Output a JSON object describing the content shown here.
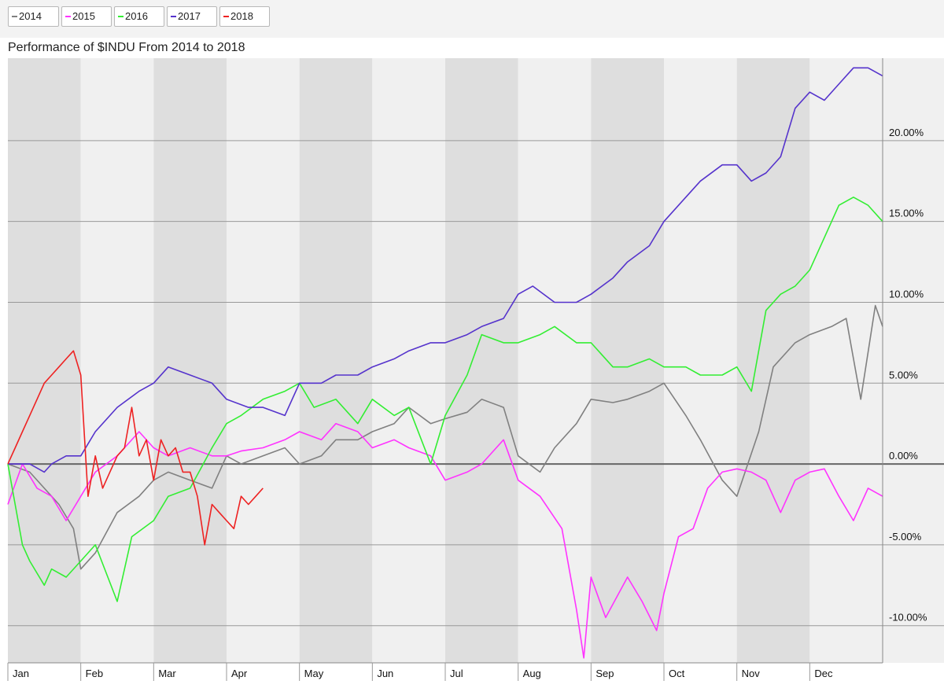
{
  "legend": [
    {
      "label": "2014",
      "color": "#808080"
    },
    {
      "label": "2015",
      "color": "#ff33ff"
    },
    {
      "label": "2016",
      "color": "#33ee33"
    },
    {
      "label": "2017",
      "color": "#5533cc"
    },
    {
      "label": "2018",
      "color": "#ee2222"
    }
  ],
  "chart_data": {
    "type": "line",
    "title": "Performance of $INDU From 2014 to 2018",
    "xlabel": "",
    "ylabel": "",
    "x_axis": "month",
    "months": [
      "Jan",
      "Feb",
      "Mar",
      "Apr",
      "May",
      "Jun",
      "Jul",
      "Aug",
      "Sep",
      "Oct",
      "Nov",
      "Dec"
    ],
    "y_ticks": [
      20,
      15,
      10,
      5,
      0,
      -5,
      -10
    ],
    "y_tick_labels": [
      "20.00%",
      "15.00%",
      "10.00%",
      "5.00%",
      "0.00%",
      "-5.00%",
      "-10.00%"
    ],
    "ylim": [
      -12.3,
      25.1
    ],
    "xlim": [
      0,
      12
    ],
    "grid": true,
    "legend_position": "top-left",
    "series": [
      {
        "name": "2014",
        "color": "#808080",
        "x": [
          0,
          0.3,
          0.5,
          0.7,
          0.9,
          1.0,
          1.2,
          1.5,
          1.8,
          2.0,
          2.2,
          2.5,
          2.8,
          3.0,
          3.2,
          3.5,
          3.8,
          4.0,
          4.3,
          4.5,
          4.8,
          5.0,
          5.3,
          5.5,
          5.8,
          6.0,
          6.3,
          6.5,
          6.8,
          7.0,
          7.3,
          7.5,
          7.8,
          8.0,
          8.3,
          8.5,
          8.8,
          9.0,
          9.3,
          9.5,
          9.8,
          10.0,
          10.3,
          10.5,
          10.8,
          11.0,
          11.3,
          11.5,
          11.7,
          11.9,
          12.0
        ],
        "values": [
          0,
          -0.5,
          -1.5,
          -2.5,
          -4.0,
          -6.5,
          -5.5,
          -3.0,
          -2.0,
          -1.0,
          -0.5,
          -1.0,
          -1.5,
          0.5,
          0.0,
          0.5,
          1.0,
          0.0,
          0.5,
          1.5,
          1.5,
          2.0,
          2.5,
          3.5,
          2.5,
          2.8,
          3.2,
          4.0,
          3.5,
          0.5,
          -0.5,
          1.0,
          2.5,
          4.0,
          3.8,
          4.0,
          4.5,
          5.0,
          3.0,
          1.5,
          -1.0,
          -2.0,
          2.0,
          6.0,
          7.5,
          8.0,
          8.5,
          9.0,
          4.0,
          9.8,
          8.5
        ]
      },
      {
        "name": "2015",
        "color": "#ff33ff",
        "x": [
          0,
          0.2,
          0.4,
          0.6,
          0.8,
          1.0,
          1.2,
          1.5,
          1.8,
          2.0,
          2.2,
          2.5,
          2.8,
          3.0,
          3.2,
          3.5,
          3.8,
          4.0,
          4.3,
          4.5,
          4.8,
          5.0,
          5.3,
          5.5,
          5.8,
          6.0,
          6.3,
          6.5,
          6.8,
          7.0,
          7.3,
          7.6,
          7.8,
          7.9,
          8.0,
          8.2,
          8.5,
          8.7,
          8.9,
          9.0,
          9.2,
          9.4,
          9.6,
          9.8,
          10.0,
          10.2,
          10.4,
          10.6,
          10.8,
          11.0,
          11.2,
          11.4,
          11.6,
          11.8,
          12.0
        ],
        "values": [
          -2.5,
          0.0,
          -1.5,
          -2.0,
          -3.5,
          -2.0,
          -0.5,
          0.5,
          2.0,
          1.0,
          0.5,
          1.0,
          0.5,
          0.5,
          0.8,
          1.0,
          1.5,
          2.0,
          1.5,
          2.5,
          2.0,
          1.0,
          1.5,
          1.0,
          0.5,
          -1.0,
          -0.5,
          0.0,
          1.5,
          -1.0,
          -2.0,
          -4.0,
          -9.0,
          -12.0,
          -7.0,
          -9.5,
          -7.0,
          -8.5,
          -10.3,
          -8.0,
          -4.5,
          -4.0,
          -1.5,
          -0.5,
          -0.3,
          -0.5,
          -1.0,
          -3.0,
          -1.0,
          -0.5,
          -0.3,
          -2.0,
          -3.5,
          -1.5,
          -2.0
        ]
      },
      {
        "name": "2016",
        "color": "#33ee33",
        "x": [
          0,
          0.2,
          0.3,
          0.5,
          0.6,
          0.8,
          1.0,
          1.2,
          1.5,
          1.7,
          2.0,
          2.2,
          2.5,
          2.8,
          3.0,
          3.2,
          3.5,
          3.8,
          4.0,
          4.2,
          4.5,
          4.8,
          5.0,
          5.3,
          5.5,
          5.8,
          6.0,
          6.3,
          6.5,
          6.8,
          7.0,
          7.3,
          7.5,
          7.8,
          8.0,
          8.3,
          8.5,
          8.8,
          9.0,
          9.3,
          9.5,
          9.8,
          10.0,
          10.2,
          10.4,
          10.6,
          10.8,
          11.0,
          11.2,
          11.4,
          11.6,
          11.8,
          12.0
        ],
        "values": [
          0,
          -5.0,
          -6.0,
          -7.5,
          -6.5,
          -7.0,
          -6.0,
          -5.0,
          -8.5,
          -4.5,
          -3.5,
          -2.0,
          -1.5,
          1.0,
          2.5,
          3.0,
          4.0,
          4.5,
          5.0,
          3.5,
          4.0,
          2.5,
          4.0,
          3.0,
          3.5,
          0.0,
          3.0,
          5.5,
          8.0,
          7.5,
          7.5,
          8.0,
          8.5,
          7.5,
          7.5,
          6.0,
          6.0,
          6.5,
          6.0,
          6.0,
          5.5,
          5.5,
          6.0,
          4.5,
          9.5,
          10.5,
          11.0,
          12.0,
          14.0,
          16.0,
          16.5,
          16.0,
          15.0
        ]
      },
      {
        "name": "2017",
        "color": "#5533cc",
        "x": [
          0,
          0.3,
          0.5,
          0.6,
          0.8,
          1.0,
          1.2,
          1.5,
          1.8,
          2.0,
          2.2,
          2.5,
          2.8,
          3.0,
          3.3,
          3.5,
          3.8,
          4.0,
          4.3,
          4.5,
          4.8,
          5.0,
          5.3,
          5.5,
          5.8,
          6.0,
          6.3,
          6.5,
          6.8,
          7.0,
          7.2,
          7.5,
          7.8,
          8.0,
          8.3,
          8.5,
          8.8,
          9.0,
          9.3,
          9.5,
          9.8,
          10.0,
          10.2,
          10.4,
          10.6,
          10.8,
          11.0,
          11.2,
          11.4,
          11.6,
          11.8,
          12.0
        ],
        "values": [
          0,
          0.0,
          -0.5,
          0.0,
          0.5,
          0.5,
          2.0,
          3.5,
          4.5,
          5.0,
          6.0,
          5.5,
          5.0,
          4.0,
          3.5,
          3.5,
          3.0,
          5.0,
          5.0,
          5.5,
          5.5,
          6.0,
          6.5,
          7.0,
          7.5,
          7.5,
          8.0,
          8.5,
          9.0,
          10.5,
          11.0,
          10.0,
          10.0,
          10.5,
          11.5,
          12.5,
          13.5,
          15.0,
          16.5,
          17.5,
          18.5,
          18.5,
          17.5,
          18.0,
          19.0,
          22.0,
          23.0,
          22.5,
          23.5,
          24.5,
          24.5,
          24.0
        ]
      },
      {
        "name": "2018",
        "color": "#ee2222",
        "x": [
          0,
          0.1,
          0.2,
          0.3,
          0.4,
          0.5,
          0.6,
          0.7,
          0.8,
          0.9,
          1.0,
          1.1,
          1.2,
          1.3,
          1.4,
          1.5,
          1.6,
          1.7,
          1.8,
          1.9,
          2.0,
          2.1,
          2.2,
          2.3,
          2.4,
          2.5,
          2.6,
          2.7,
          2.8,
          2.9,
          3.0,
          3.1,
          3.2,
          3.3,
          3.4,
          3.5
        ],
        "values": [
          0,
          1.0,
          2.0,
          3.0,
          4.0,
          5.0,
          5.5,
          6.0,
          6.5,
          7.0,
          5.5,
          -2.0,
          0.5,
          -1.5,
          -0.5,
          0.5,
          1.0,
          3.5,
          0.5,
          1.5,
          -1.0,
          1.5,
          0.5,
          1.0,
          -0.5,
          -0.5,
          -2.0,
          -5.0,
          -2.5,
          -3.0,
          -3.5,
          -4.0,
          -2.0,
          -2.5,
          -2.0,
          -1.5
        ]
      }
    ]
  }
}
